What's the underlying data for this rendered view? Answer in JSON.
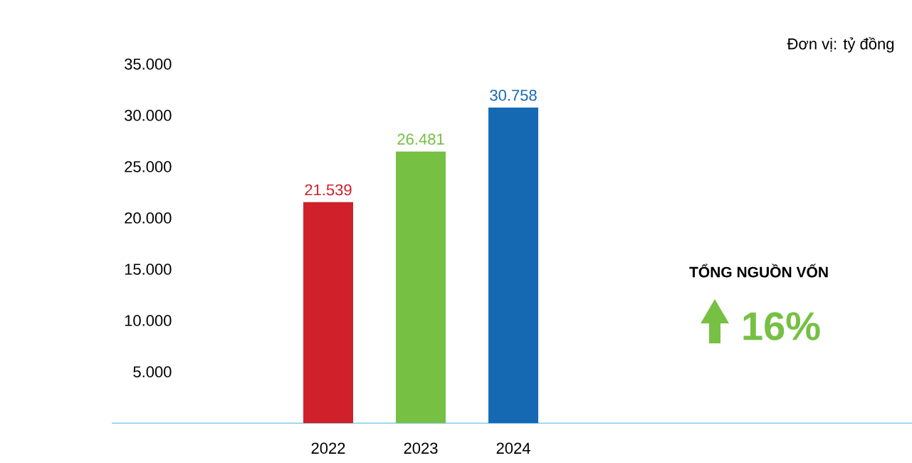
{
  "chart_data": {
    "type": "bar",
    "categories": [
      "2022",
      "2023",
      "2024"
    ],
    "values": [
      21539,
      26481,
      30758
    ],
    "colors": [
      "#d0202a",
      "#76c043",
      "#1569b3"
    ],
    "value_labels": [
      "21.539",
      "26.481",
      "30.758"
    ],
    "ylim": [
      0,
      35000
    ],
    "yticks": [
      {
        "value": 5000,
        "label": "5.000"
      },
      {
        "value": 10000,
        "label": "10.000"
      },
      {
        "value": 15000,
        "label": "15.000"
      },
      {
        "value": 20000,
        "label": "20.000"
      },
      {
        "value": 25000,
        "label": "25.000"
      },
      {
        "value": 30000,
        "label": "30.000"
      },
      {
        "value": 35000,
        "label": "35.000"
      }
    ],
    "annotations": [
      "Đơn vị: tỷ đồng",
      "TỔNG NGUỒN VỐN",
      "16%"
    ]
  }
}
